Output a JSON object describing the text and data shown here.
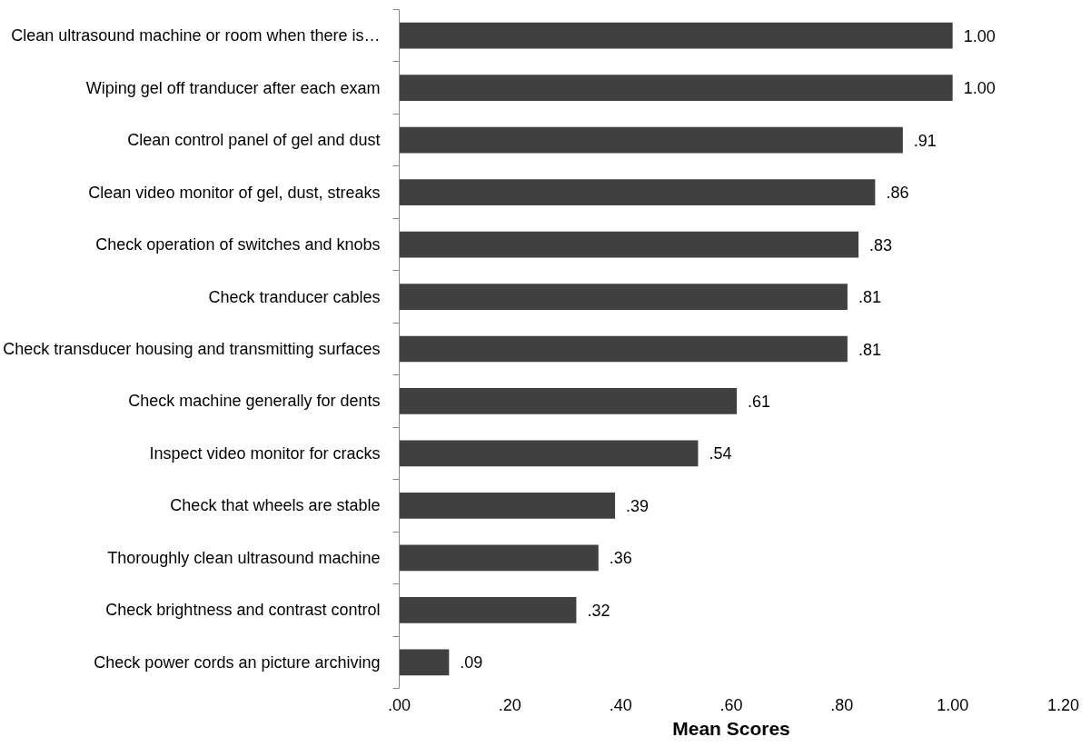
{
  "chart_data": {
    "type": "bar",
    "orientation": "horizontal",
    "xlabel": "Mean Scores",
    "categories": [
      "Clean ultrasound machine or room when there is…",
      "Wiping gel off tranducer after each exam",
      "Clean control panel of gel and dust",
      "Clean video monitor of gel, dust, streaks",
      "Check operation of switches and knobs",
      "Check tranducer cables",
      "Check transducer housing and transmitting surfaces",
      "Check machine generally for dents",
      "Inspect video monitor for cracks",
      "Check that wheels are stable",
      "Thoroughly clean ultrasound machine",
      "Check brightness and contrast control",
      "Check power cords an picture archiving"
    ],
    "values": [
      1.0,
      1.0,
      0.91,
      0.86,
      0.83,
      0.81,
      0.81,
      0.61,
      0.54,
      0.39,
      0.36,
      0.32,
      0.09
    ],
    "value_labels": [
      "1.00",
      "1.00",
      ".91",
      ".86",
      ".83",
      ".81",
      ".81",
      ".61",
      ".54",
      ".39",
      ".36",
      ".32",
      ".09"
    ],
    "color": "#404040",
    "xlim": [
      0,
      1.2
    ],
    "xticks": [
      {
        "value": 0,
        "label": ".00"
      },
      {
        "value": 0.2,
        "label": ".20"
      },
      {
        "value": 0.4,
        "label": ".40"
      },
      {
        "value": 0.6,
        "label": ".60"
      },
      {
        "value": 0.8,
        "label": ".80"
      },
      {
        "value": 1.0,
        "label": "1.00"
      },
      {
        "value": 1.2,
        "label": "1.20"
      }
    ],
    "grid": false
  }
}
